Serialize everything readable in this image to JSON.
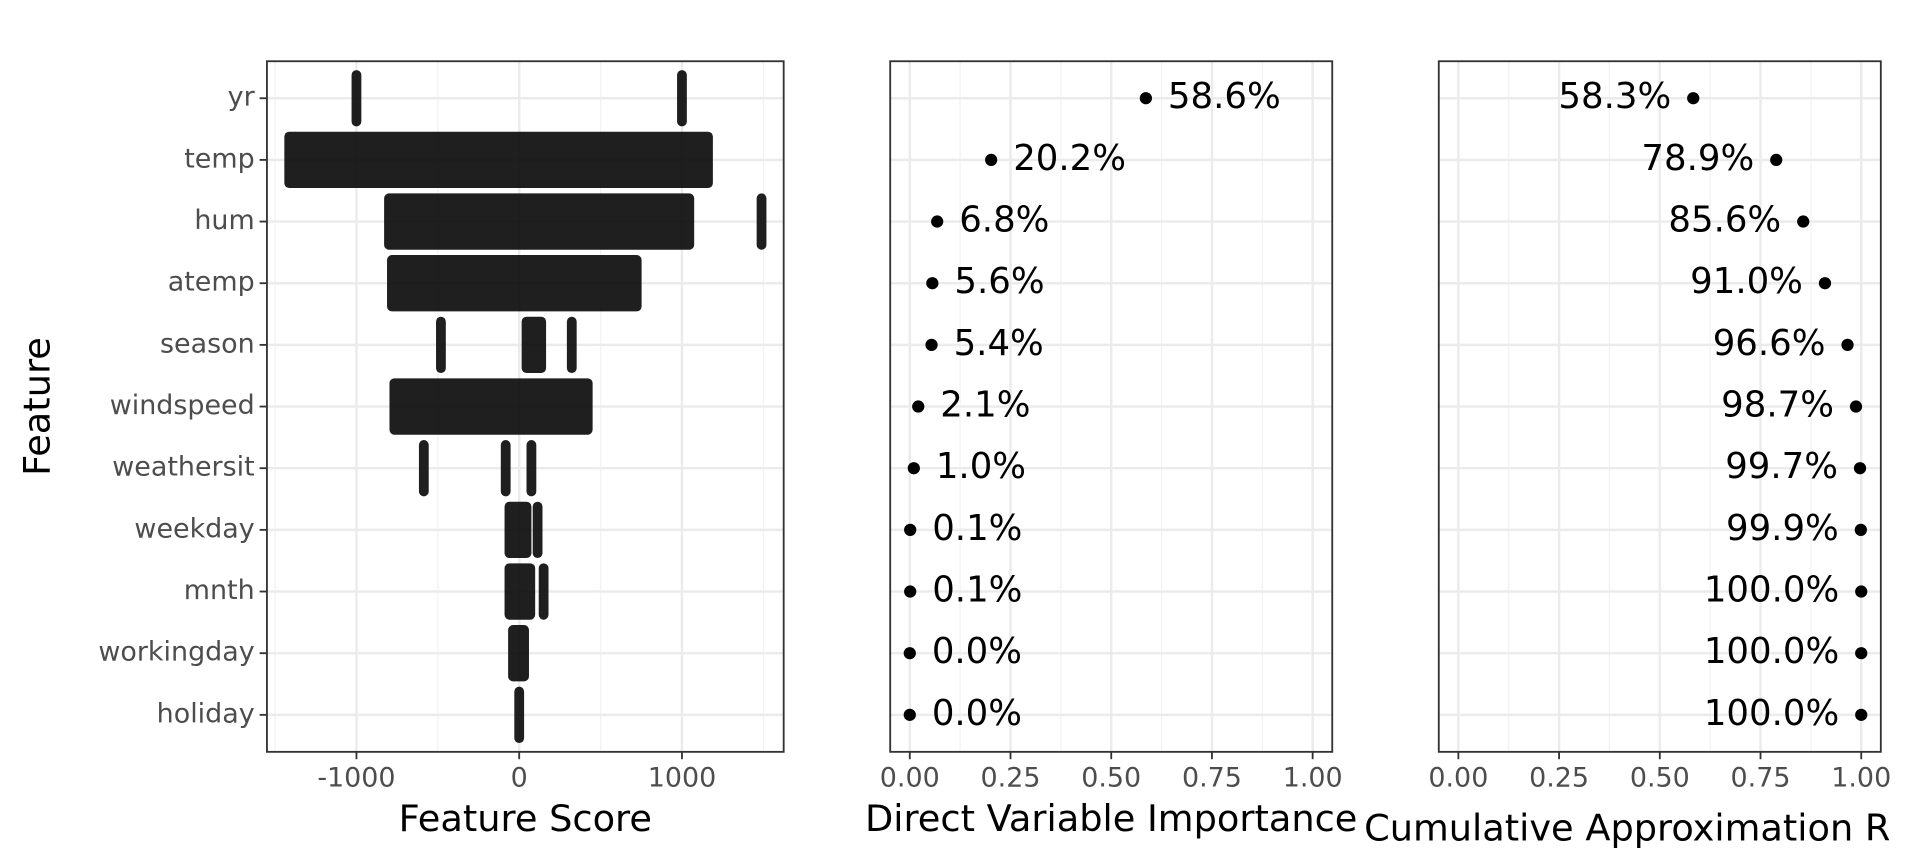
{
  "chart_data": [
    {
      "type": "strip",
      "x_label": "Feature Score",
      "y_label": "Feature",
      "color": "#000000",
      "categories": [
        "yr",
        "temp",
        "hum",
        "atemp",
        "season",
        "windspeed",
        "weathersit",
        "weekday",
        "mnth",
        "workingday",
        "holiday"
      ],
      "ranges": [
        [
          [
            -1000,
            -1000
          ],
          [
            1000,
            1000
          ]
        ],
        [
          [
            -1413,
            1160
          ]
        ],
        [
          [
            -800,
            1045
          ],
          [
            1489,
            1489
          ]
        ],
        [
          [
            -782,
            722
          ]
        ],
        [
          [
            -481,
            -481
          ],
          [
            45,
            135
          ],
          [
            323,
            323
          ]
        ],
        [
          [
            -767,
            421
          ]
        ],
        [
          [
            -586,
            -586
          ],
          [
            -83,
            -83
          ],
          [
            75,
            75
          ]
        ],
        [
          [
            -60,
            45
          ],
          [
            113,
            113
          ]
        ],
        [
          [
            -60,
            68
          ],
          [
            150,
            150
          ]
        ],
        [
          [
            -38,
            30
          ]
        ],
        [
          [
            0,
            0
          ]
        ]
      ],
      "xlim": [
        -1550,
        1625
      ],
      "xticks": [
        -1000,
        0,
        1000
      ],
      "xminor": [
        -1500,
        -500,
        500,
        1500
      ],
      "grid": true
    },
    {
      "type": "dot",
      "x_label": "Direct Variable Importance",
      "color": "#000000",
      "label_side": "right",
      "values": [
        0.586,
        0.202,
        0.068,
        0.056,
        0.054,
        0.021,
        0.01,
        0.001,
        0.001,
        0.0,
        0.0
      ],
      "value_labels": [
        "58.6%",
        "20.2%",
        "6.8%",
        "5.6%",
        "5.4%",
        "2.1%",
        "1.0%",
        "0.1%",
        "0.1%",
        "0.0%",
        "0.0%"
      ],
      "xlim": [
        -0.0486,
        1.0486
      ],
      "xticks": [
        {
          "value": 0,
          "label": "0.00"
        },
        {
          "value": 0.25,
          "label": "0.25"
        },
        {
          "value": 0.5,
          "label": "0.50"
        },
        {
          "value": 0.75,
          "label": "0.75"
        },
        {
          "value": 1,
          "label": "1.00"
        }
      ],
      "xminor": [
        0.125,
        0.375,
        0.625,
        0.875
      ],
      "grid": true
    },
    {
      "type": "dot",
      "x_label": "Cumulative Approximation R",
      "color": "#000000",
      "label_side": "left",
      "values": [
        0.583,
        0.789,
        0.856,
        0.91,
        0.966,
        0.987,
        0.997,
        0.999,
        1.0,
        1.0,
        1.0
      ],
      "value_labels": [
        "58.3%",
        "78.9%",
        "85.6%",
        "91.0%",
        "96.6%",
        "98.7%",
        "99.7%",
        "99.9%",
        "100.0%",
        "100.0%",
        "100.0%"
      ],
      "xlim": [
        -0.0486,
        1.0486
      ],
      "xticks": [
        {
          "value": 0,
          "label": "0.00"
        },
        {
          "value": 0.25,
          "label": "0.25"
        },
        {
          "value": 0.5,
          "label": "0.50"
        },
        {
          "value": 0.75,
          "label": "0.75"
        },
        {
          "value": 1,
          "label": "1.00"
        }
      ],
      "xminor": [
        0.125,
        0.375,
        0.625,
        0.875
      ],
      "grid": true
    }
  ]
}
